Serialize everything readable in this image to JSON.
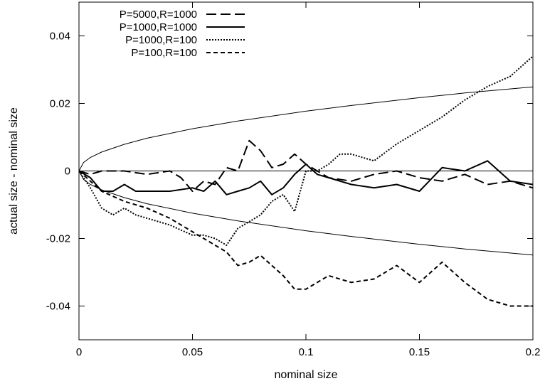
{
  "chart_data": {
    "type": "line",
    "xlabel": "nominal size",
    "ylabel": "actual size - nominal size",
    "xlim": [
      0,
      0.2
    ],
    "ylim": [
      -0.05,
      0.05
    ],
    "x_ticks": [
      0,
      0.05,
      0.1,
      0.15,
      0.2
    ],
    "x_tick_labels": [
      "0",
      "0.05",
      "0.1",
      "0.15",
      "0.2"
    ],
    "y_ticks": [
      -0.04,
      -0.02,
      0,
      0.02,
      0.04
    ],
    "y_tick_labels": [
      "-0.04",
      "-0.02",
      "0",
      "0.02",
      "0.04"
    ],
    "grid": false,
    "legend_position": "top-left",
    "reference_curves": [
      {
        "x": [
          0,
          0.002,
          0.005,
          0.01,
          0.02,
          0.03,
          0.05,
          0.07,
          0.1,
          0.12,
          0.15,
          0.17,
          0.2
        ],
        "y": [
          0,
          0.0025,
          0.004,
          0.0056,
          0.0079,
          0.0097,
          0.0125,
          0.0148,
          0.0177,
          0.0194,
          0.0217,
          0.0231,
          0.0249
        ],
        "style": "thin-solid"
      },
      {
        "x": [
          0,
          0.002,
          0.005,
          0.01,
          0.02,
          0.03,
          0.05,
          0.07,
          0.1,
          0.12,
          0.15,
          0.17,
          0.2
        ],
        "y": [
          0,
          -0.0025,
          -0.004,
          -0.0056,
          -0.0079,
          -0.0097,
          -0.0125,
          -0.0148,
          -0.0177,
          -0.0194,
          -0.0217,
          -0.0231,
          -0.0249
        ],
        "style": "thin-solid"
      },
      {
        "x": [
          0,
          0.2
        ],
        "y": [
          0,
          0
        ],
        "style": "thin-solid"
      }
    ],
    "series": [
      {
        "name": "P=5000,R=1000",
        "style": "long-dash",
        "x": [
          0,
          0.005,
          0.01,
          0.02,
          0.03,
          0.04,
          0.045,
          0.05,
          0.055,
          0.06,
          0.065,
          0.07,
          0.075,
          0.08,
          0.085,
          0.09,
          0.095,
          0.1,
          0.105,
          0.11,
          0.12,
          0.13,
          0.14,
          0.15,
          0.16,
          0.17,
          0.18,
          0.19,
          0.2
        ],
        "y": [
          0,
          -0.001,
          0,
          0,
          -0.001,
          0,
          -0.002,
          -0.006,
          -0.003,
          -0.004,
          0.001,
          0,
          0.009,
          0.006,
          0.001,
          0.002,
          0.005,
          0.002,
          0,
          -0.002,
          -0.003,
          -0.001,
          0,
          -0.002,
          -0.003,
          -0.001,
          -0.004,
          -0.003,
          -0.005
        ]
      },
      {
        "name": "P=1000,R=1000",
        "style": "solid",
        "x": [
          0,
          0.005,
          0.01,
          0.015,
          0.02,
          0.025,
          0.03,
          0.04,
          0.05,
          0.055,
          0.06,
          0.065,
          0.07,
          0.075,
          0.08,
          0.085,
          0.09,
          0.095,
          0.1,
          0.105,
          0.11,
          0.12,
          0.13,
          0.14,
          0.15,
          0.16,
          0.17,
          0.18,
          0.19,
          0.2
        ],
        "y": [
          0,
          -0.002,
          -0.006,
          -0.006,
          -0.004,
          -0.006,
          -0.006,
          -0.006,
          -0.005,
          -0.006,
          -0.003,
          -0.007,
          -0.006,
          -0.005,
          -0.003,
          -0.007,
          -0.005,
          -0.001,
          0.002,
          -0.001,
          -0.002,
          -0.004,
          -0.005,
          -0.004,
          -0.006,
          0.001,
          0,
          0.003,
          -0.003,
          -0.004
        ]
      },
      {
        "name": "P=1000,R=100",
        "style": "dotted",
        "x": [
          0,
          0.005,
          0.01,
          0.015,
          0.02,
          0.025,
          0.03,
          0.04,
          0.05,
          0.055,
          0.06,
          0.065,
          0.07,
          0.075,
          0.08,
          0.085,
          0.09,
          0.095,
          0.1,
          0.105,
          0.11,
          0.115,
          0.12,
          0.13,
          0.14,
          0.15,
          0.16,
          0.17,
          0.18,
          0.19,
          0.2
        ],
        "y": [
          0,
          -0.005,
          -0.011,
          -0.013,
          -0.011,
          -0.013,
          -0.014,
          -0.016,
          -0.019,
          -0.019,
          -0.02,
          -0.022,
          -0.017,
          -0.015,
          -0.013,
          -0.009,
          -0.007,
          -0.012,
          0,
          0,
          0.002,
          0.005,
          0.005,
          0.003,
          0.008,
          0.012,
          0.016,
          0.021,
          0.025,
          0.028,
          0.034
        ]
      },
      {
        "name": "P=100,R=100",
        "style": "short-dash",
        "x": [
          0,
          0.005,
          0.01,
          0.02,
          0.03,
          0.04,
          0.05,
          0.06,
          0.065,
          0.07,
          0.075,
          0.08,
          0.085,
          0.09,
          0.095,
          0.1,
          0.105,
          0.11,
          0.12,
          0.13,
          0.14,
          0.15,
          0.16,
          0.17,
          0.18,
          0.19,
          0.2
        ],
        "y": [
          0,
          -0.003,
          -0.006,
          -0.009,
          -0.011,
          -0.014,
          -0.018,
          -0.022,
          -0.024,
          -0.028,
          -0.027,
          -0.025,
          -0.028,
          -0.031,
          -0.035,
          -0.035,
          -0.033,
          -0.031,
          -0.033,
          -0.032,
          -0.028,
          -0.033,
          -0.027,
          -0.033,
          -0.038,
          -0.04,
          -0.04
        ]
      }
    ]
  }
}
